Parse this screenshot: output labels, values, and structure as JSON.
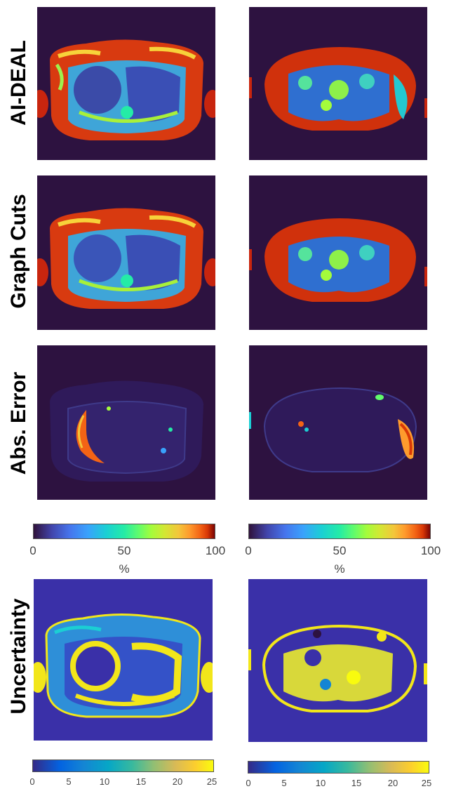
{
  "rows": [
    {
      "id": "ai-deal",
      "label": "AI-DEAL"
    },
    {
      "id": "graph-cuts",
      "label": "Graph Cuts"
    },
    {
      "id": "abs-error",
      "label": "Abs. Error"
    },
    {
      "id": "uncertainty",
      "label": "Uncertainty"
    }
  ],
  "colorbar_fat": {
    "ticks": [
      "0",
      "50",
      "100"
    ],
    "unit": "%"
  },
  "colorbar_uncertainty": {
    "ticks": [
      "0",
      "5",
      "10",
      "15",
      "20",
      "25"
    ]
  },
  "colors": {
    "jet_background": "#2d1240",
    "parula_background": "#3a30a8",
    "jet_high": "#c8250e",
    "jet_mid": "#3fd0c0",
    "jet_low": "#3b4ba8",
    "parula_high": "#f2e61a"
  }
}
